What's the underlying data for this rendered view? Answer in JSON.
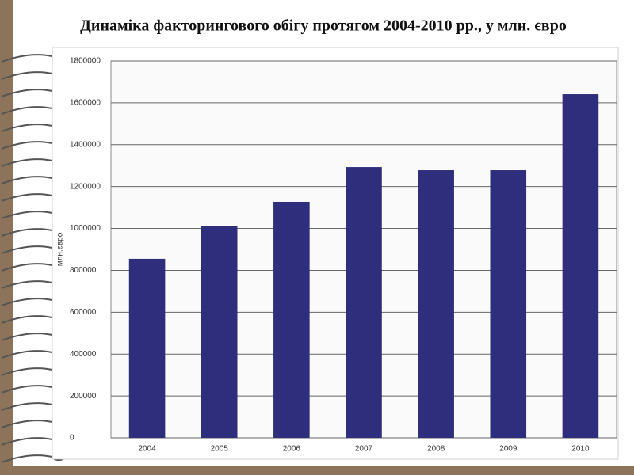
{
  "chart_data": {
    "type": "bar",
    "title": "Динаміка  факторингового обігу протягом 2004-2010 рр., у млн. євро",
    "y_label": "млн.євро",
    "categories": [
      "2004",
      "2005",
      "2006",
      "2007",
      "2008",
      "2009",
      "2010"
    ],
    "values": [
      855000,
      1010000,
      1127000,
      1293000,
      1278000,
      1278000,
      1641000
    ],
    "color": "#2e2e7c",
    "ylim": [
      0,
      1800000
    ],
    "yticks": [
      0,
      200000,
      400000,
      600000,
      800000,
      1000000,
      1200000,
      1400000,
      1600000,
      1800000
    ],
    "grid": true
  }
}
